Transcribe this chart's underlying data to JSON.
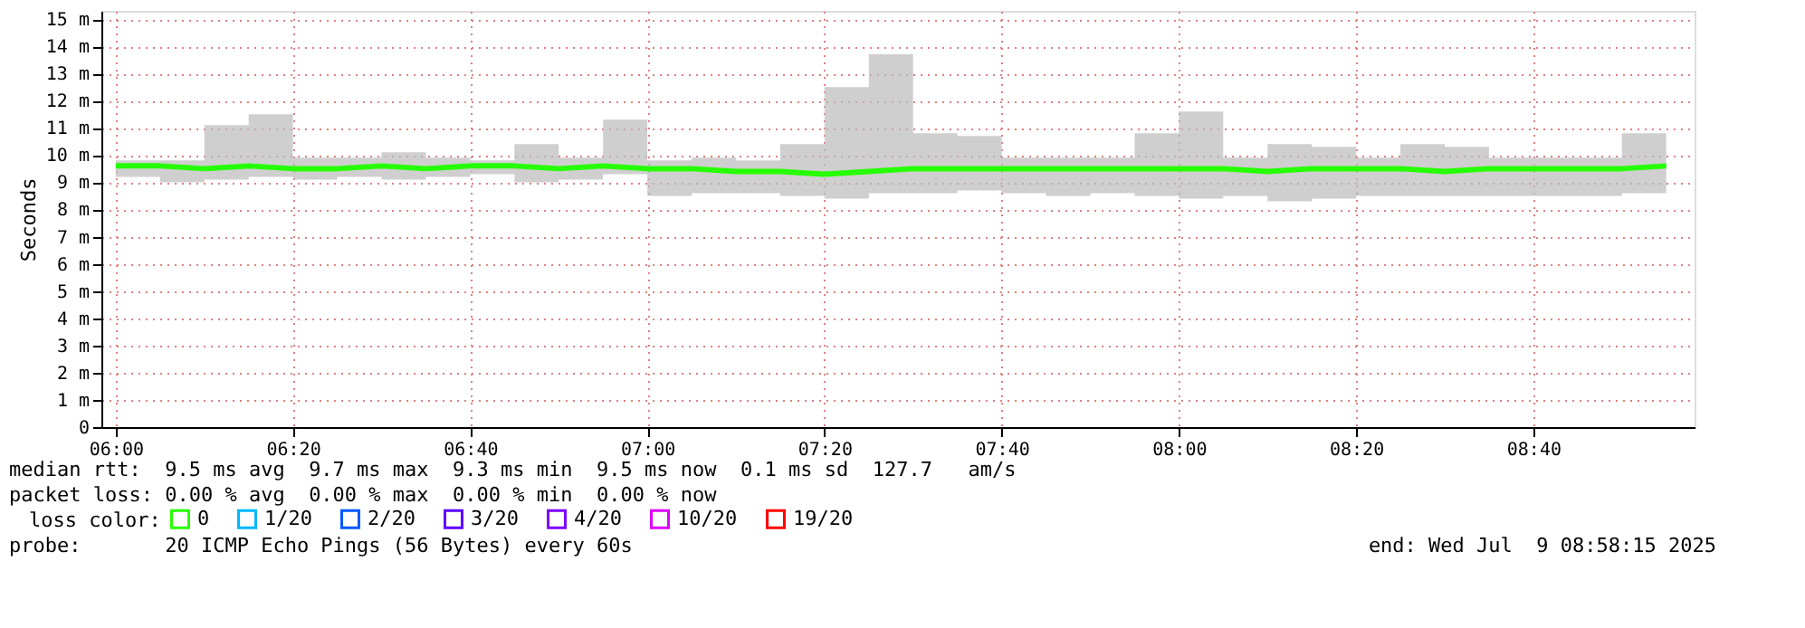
{
  "chart_data": {
    "type": "line",
    "x": [
      6.0,
      6.0833,
      6.1667,
      6.25,
      6.3333,
      6.4167,
      6.5,
      6.5833,
      6.6667,
      6.75,
      6.8333,
      6.9167,
      7.0,
      7.0833,
      7.1667,
      7.25,
      7.3333,
      7.4167,
      7.5,
      7.5833,
      7.6667,
      7.75,
      7.8333,
      7.9167,
      8.0,
      8.0833,
      8.1667,
      8.25,
      8.3333,
      8.4167,
      8.5,
      8.5833,
      8.6667,
      8.75,
      8.8333,
      8.9167
    ],
    "series": [
      {
        "name": "0",
        "color": "#26ff00",
        "values": [
          9.6,
          9.6,
          9.5,
          9.6,
          9.5,
          9.5,
          9.6,
          9.5,
          9.6,
          9.6,
          9.5,
          9.6,
          9.5,
          9.5,
          9.4,
          9.4,
          9.3,
          9.4,
          9.5,
          9.5,
          9.5,
          9.5,
          9.5,
          9.5,
          9.5,
          9.5,
          9.4,
          9.5,
          9.5,
          9.5,
          9.4,
          9.5,
          9.5,
          9.5,
          9.5,
          9.6
        ],
        "lower": [
          9.2,
          9.0,
          9.1,
          9.2,
          9.1,
          9.2,
          9.1,
          9.2,
          9.3,
          9.0,
          9.1,
          9.3,
          8.5,
          8.6,
          8.6,
          8.5,
          8.4,
          8.6,
          8.6,
          8.7,
          8.6,
          8.5,
          8.6,
          8.5,
          8.4,
          8.5,
          8.3,
          8.4,
          8.5,
          8.5,
          8.5,
          8.5,
          8.5,
          8.5,
          8.6,
          8.6
        ],
        "upper": [
          9.8,
          9.8,
          11.1,
          11.5,
          9.9,
          9.9,
          10.1,
          9.9,
          9.8,
          10.4,
          9.9,
          11.3,
          9.8,
          9.9,
          9.8,
          10.4,
          12.5,
          13.7,
          10.8,
          10.7,
          9.9,
          9.9,
          9.9,
          10.8,
          11.6,
          9.9,
          10.4,
          10.3,
          9.9,
          10.4,
          10.3,
          9.9,
          9.9,
          9.9,
          10.8,
          9.9
        ]
      },
      {
        "name": "1/20",
        "color": "#00b8ff",
        "values": [
          null,
          null,
          null,
          null,
          null,
          null,
          null,
          null,
          null,
          null,
          null,
          null,
          null,
          null,
          null,
          null,
          null,
          null,
          null,
          null,
          null,
          null,
          null,
          null,
          null,
          null,
          null,
          null,
          null,
          null,
          null,
          null,
          null,
          null,
          null,
          null
        ]
      },
      {
        "name": "2/20",
        "color": "#0059ff",
        "values": [
          null,
          null,
          null,
          null,
          null,
          null,
          null,
          null,
          null,
          null,
          null,
          null,
          null,
          null,
          null,
          null,
          null,
          null,
          null,
          null,
          null,
          null,
          null,
          null,
          null,
          null,
          null,
          null,
          null,
          null,
          null,
          null,
          null,
          null,
          null,
          null
        ]
      },
      {
        "name": "3/20",
        "color": "#5e00ff",
        "values": [
          null,
          null,
          null,
          null,
          null,
          null,
          null,
          null,
          null,
          null,
          null,
          null,
          null,
          null,
          null,
          null,
          null,
          null,
          null,
          null,
          null,
          null,
          null,
          null,
          null,
          null,
          null,
          null,
          null,
          null,
          null,
          null,
          null,
          null,
          null,
          null
        ]
      },
      {
        "name": "4/20",
        "color": "#7e00ff",
        "values": [
          null,
          null,
          null,
          null,
          null,
          null,
          null,
          null,
          null,
          null,
          null,
          null,
          null,
          null,
          null,
          null,
          null,
          null,
          null,
          null,
          null,
          null,
          null,
          null,
          null,
          null,
          null,
          null,
          null,
          null,
          null,
          null,
          null,
          null,
          null,
          null
        ]
      },
      {
        "name": "10/20",
        "color": "#dd00ff",
        "values": [
          null,
          null,
          null,
          null,
          null,
          null,
          null,
          null,
          null,
          null,
          null,
          null,
          null,
          null,
          null,
          null,
          null,
          null,
          null,
          null,
          null,
          null,
          null,
          null,
          null,
          null,
          null,
          null,
          null,
          null,
          null,
          null,
          null,
          null,
          null,
          null
        ]
      },
      {
        "name": "19/20",
        "color": "#ff0000",
        "values": [
          null,
          null,
          null,
          null,
          null,
          null,
          null,
          null,
          null,
          null,
          null,
          null,
          null,
          null,
          null,
          null,
          null,
          null,
          null,
          null,
          null,
          null,
          null,
          null,
          null,
          null,
          null,
          null,
          null,
          null,
          null,
          null,
          null,
          null,
          null,
          null
        ]
      }
    ],
    "ylabel": "Seconds",
    "legend_title": "loss color:",
    "legend": "bottom left",
    "grid": true,
    "line_style": "solid",
    "xlim": [
      5.973,
      8.97
    ],
    "xticks": [
      {
        "value": 6.0,
        "label": "06:00"
      },
      {
        "value": 6.3333,
        "label": "06:20"
      },
      {
        "value": 6.6667,
        "label": "06:40"
      },
      {
        "value": 7.0,
        "label": "07:00"
      },
      {
        "value": 7.3333,
        "label": "07:20"
      },
      {
        "value": 7.6667,
        "label": "07:40"
      },
      {
        "value": 8.0,
        "label": "08:00"
      },
      {
        "value": 8.3333,
        "label": "08:20"
      },
      {
        "value": 8.6667,
        "label": "08:40"
      }
    ],
    "ylim": [
      0,
      15.3
    ],
    "yticks": [
      0,
      {
        "value": 1,
        "label": "1 m"
      },
      {
        "value": 2,
        "label": "2 m"
      },
      {
        "value": 3,
        "label": "3 m"
      },
      {
        "value": 4,
        "label": "4 m"
      },
      {
        "value": 5,
        "label": "5 m"
      },
      {
        "value": 6,
        "label": "6 m"
      },
      {
        "value": 7,
        "label": "7 m"
      },
      {
        "value": 8,
        "label": "8 m"
      },
      {
        "value": 9,
        "label": "9 m"
      },
      {
        "value": 10,
        "label": "10 m"
      },
      {
        "value": 11,
        "label": "11 m"
      },
      {
        "value": 12,
        "label": "12 m"
      },
      {
        "value": 13,
        "label": "13 m"
      },
      {
        "value": 14,
        "label": "14 m"
      },
      {
        "value": 15,
        "label": "15 m"
      }
    ],
    "annotations": [
      "median rtt:  9.5 ms avg  9.7 ms max  9.3 ms min  9.5 ms now  0.1 ms sd  127.7   am/s",
      "packet loss: 0.00 % avg  0.00 % max  0.00 % min  0.00 % now",
      "probe:       20 ICMP Echo Pings (56 Bytes) every 60s",
      "end: Wed Jul  9 08:58:15 2025"
    ]
  }
}
